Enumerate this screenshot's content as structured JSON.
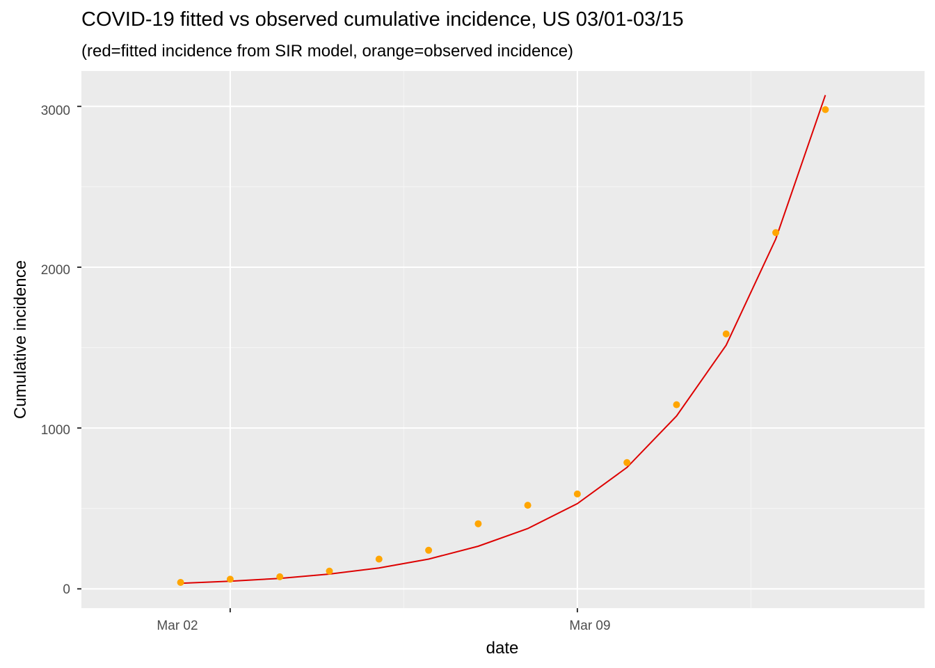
{
  "chart_data": {
    "type": "line",
    "title": "COVID-19 fitted vs observed cumulative incidence, US 03/01-03/15",
    "subtitle": "(red=fitted incidence from SIR model, orange=observed incidence)",
    "xlabel": "date",
    "ylabel": "Cumulative incidence",
    "x_tick_labels": [
      "Mar 02",
      "Mar 09"
    ],
    "y_ticks": [
      0,
      1000,
      2000,
      3000
    ],
    "xlim": [
      "2020-02-28",
      "2020-03-16"
    ],
    "ylim": [
      -120,
      3220
    ],
    "grid": true,
    "legend": "none",
    "x": [
      "2020-03-01",
      "2020-03-02",
      "2020-03-03",
      "2020-03-04",
      "2020-03-05",
      "2020-03-06",
      "2020-03-07",
      "2020-03-08",
      "2020-03-09",
      "2020-03-10",
      "2020-03-11",
      "2020-03-12",
      "2020-03-13",
      "2020-03-14"
    ],
    "series": [
      {
        "type": "line",
        "color": "#dd0000",
        "values": [
          35,
          48,
          65,
          92,
          130,
          185,
          265,
          375,
          530,
          755,
          1075,
          1515,
          2175,
          3070
        ]
      },
      {
        "type": "scatter",
        "color": "#ffa500",
        "values": [
          40,
          60,
          75,
          110,
          185,
          240,
          405,
          520,
          590,
          785,
          1145,
          1585,
          2215,
          2980
        ]
      }
    ],
    "colors": {
      "panel_background": "#ebebeb",
      "grid_major": "#ffffff",
      "grid_minor": "#f5f5f5",
      "fitted_line": "#dd0000",
      "observed_points": "#ffa500"
    }
  }
}
